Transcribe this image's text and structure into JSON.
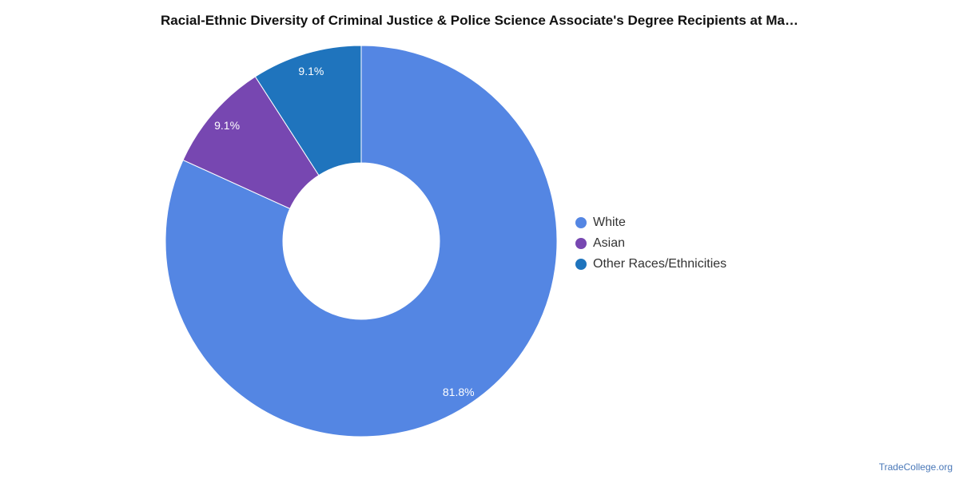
{
  "chart_data": {
    "type": "pie",
    "title": "Racial-Ethnic Diversity of Criminal Justice & Police Science Associate's Degree Recipients at Ma…",
    "donut": true,
    "legend_position": "right",
    "categories": [
      "White",
      "Asian",
      "Other Races/Ethnicities"
    ],
    "values": [
      81.8,
      9.1,
      9.1
    ],
    "data_labels": [
      "81.8%",
      "9.1%",
      "9.1%"
    ],
    "colors": [
      "#5486e3",
      "#7747b1",
      "#1f74bd"
    ]
  },
  "footer": {
    "source": "TradeCollege.org"
  }
}
